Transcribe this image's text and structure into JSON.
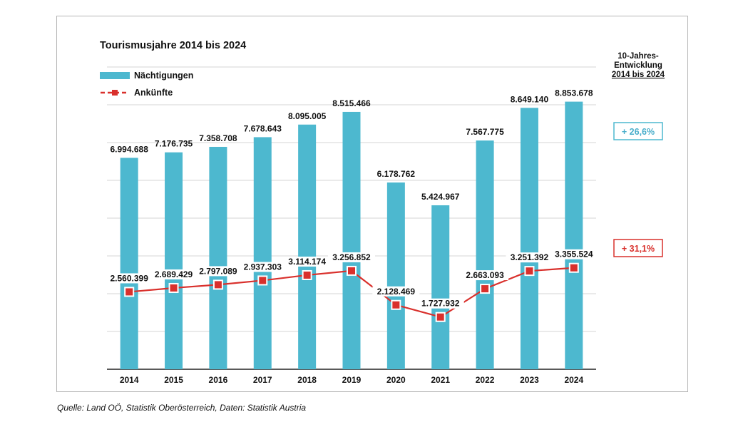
{
  "chart_data": {
    "type": "bar",
    "title": "Tourismusjahre 2014 bis 2024",
    "categories": [
      "2014",
      "2015",
      "2016",
      "2017",
      "2018",
      "2019",
      "2020",
      "2021",
      "2022",
      "2023",
      "2024"
    ],
    "series": [
      {
        "name": "Nächtigungen",
        "type": "bar",
        "color": "#4db8cf",
        "values": [
          6994688,
          7176735,
          7358708,
          7678643,
          8095005,
          8515466,
          6178762,
          5424967,
          7567775,
          8649140,
          8853678
        ],
        "labels": [
          "6.994.688",
          "7.176.735",
          "7.358.708",
          "7.678.643",
          "8.095.005",
          "8.515.466",
          "6.178.762",
          "5.424.967",
          "7.567.775",
          "8.649.140",
          "8.853.678"
        ]
      },
      {
        "name": "Ankünfte",
        "type": "line",
        "color": "#d9302c",
        "values": [
          2560399,
          2689429,
          2797089,
          2937303,
          3114174,
          3256852,
          2128469,
          1727932,
          2663093,
          3251392,
          3355524
        ],
        "labels": [
          "2.560.399",
          "2.689.429",
          "2.797.089",
          "2.937.303",
          "3.114.174",
          "3.256.852",
          "2.128.469",
          "1.727.932",
          "2.663.093",
          "3.251.392",
          "3.355.524"
        ]
      }
    ],
    "ylim": [
      0,
      10000000
    ],
    "grid": true,
    "legend": "top-left"
  },
  "side_panel": {
    "title_lines": [
      "10-Jahres-",
      "Entwicklung",
      "2014 bis 2024"
    ],
    "naechtigungen_change": "+ 26,6%",
    "ankuenfte_change": "+ 31,1%"
  },
  "source": "Quelle: Land OÖ, Statistik Oberösterreich, Daten: Statistik Austria"
}
